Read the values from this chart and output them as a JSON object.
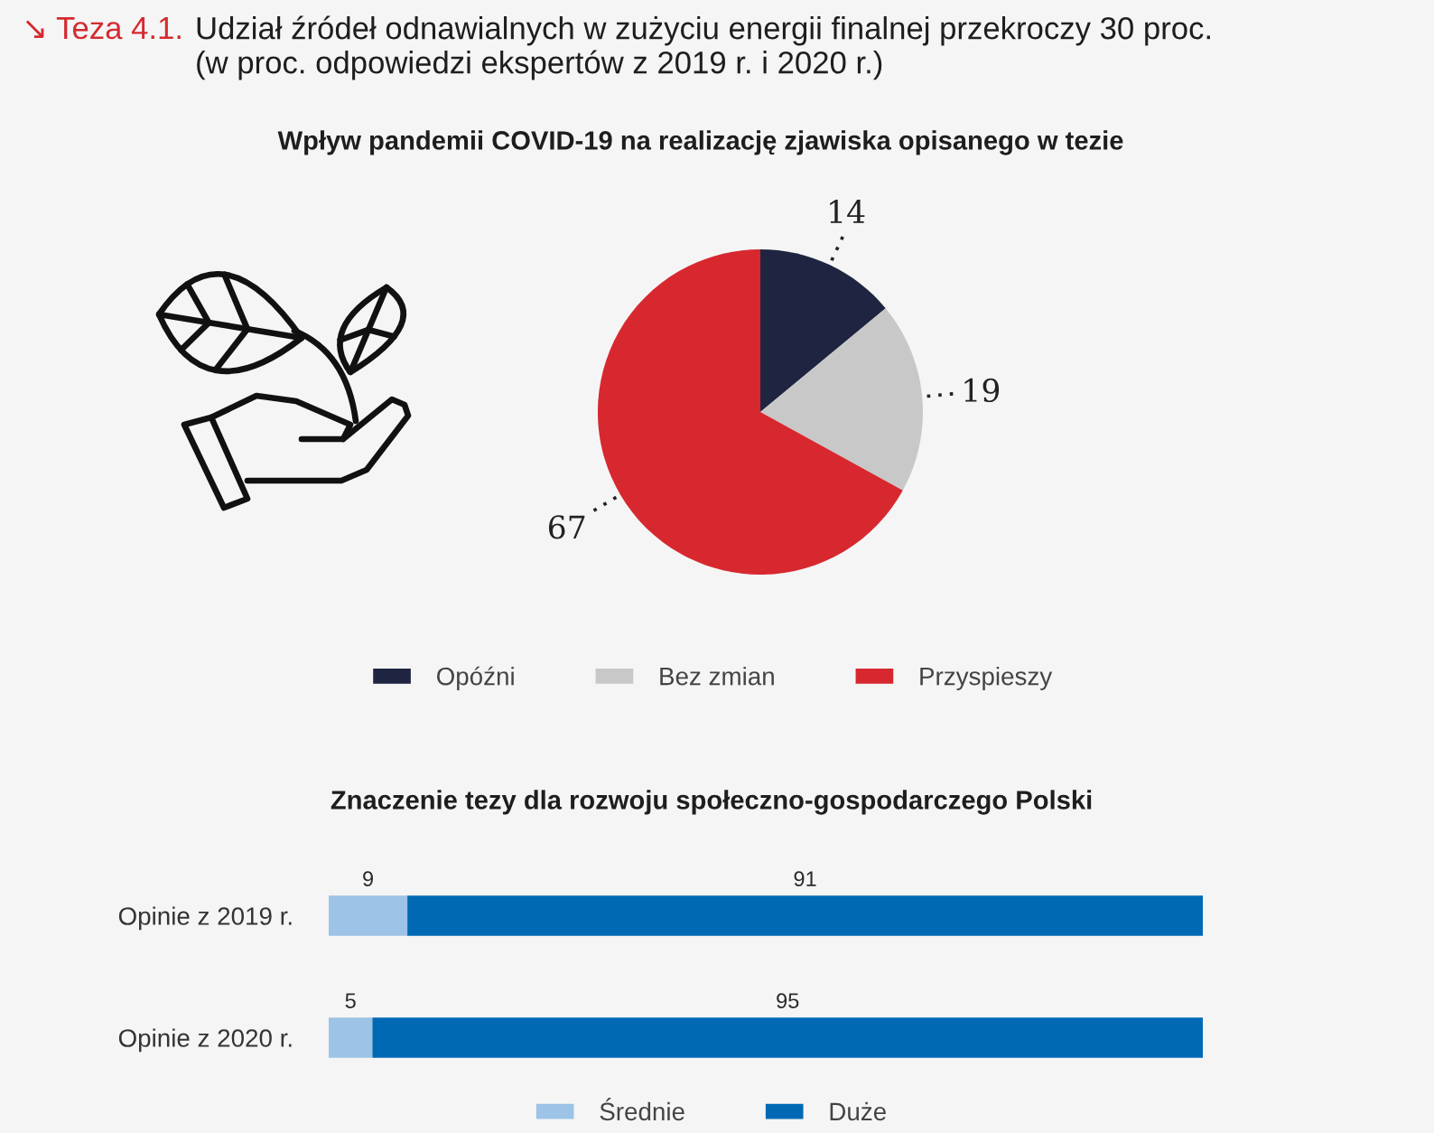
{
  "chart_data": [
    {
      "type": "pie",
      "title": "Wpływ pandemii COVID-19 na realizację zjawiska opisanego w tezie",
      "annotations": [
        "↘ Teza 4.1.",
        "Udział źródeł odnawialnych w zużyciu energii finalnej przekroczy 30 proc.",
        "(w proc. odpowiedzi ekspertów z 2019 r. i 2020 r.)"
      ],
      "categories": [
        "Opóźni",
        "Bez zmian",
        "Przyspieszy"
      ],
      "values": [
        14,
        19,
        67
      ],
      "colors": [
        "#1f2540",
        "#c8c8c8",
        "#d7282f"
      ],
      "data_labels": true,
      "legend": "bottom"
    },
    {
      "type": "bar",
      "orientation": "horizontal",
      "stacked": true,
      "title": "Znaczenie tezy dla rozwoju społeczno-gospodarczego Polski",
      "categories": [
        "Opinie z 2019 r.",
        "Opinie z 2020 r."
      ],
      "series": [
        {
          "name": "Średnie",
          "color": "#9dc3e6",
          "values": [
            9,
            5
          ]
        },
        {
          "name": "Duże",
          "color": "#0069b4",
          "values": [
            91,
            95
          ]
        }
      ],
      "xlim": [
        0,
        100
      ],
      "data_labels": true,
      "legend": "bottom",
      "tick_labels": "y"
    }
  ]
}
